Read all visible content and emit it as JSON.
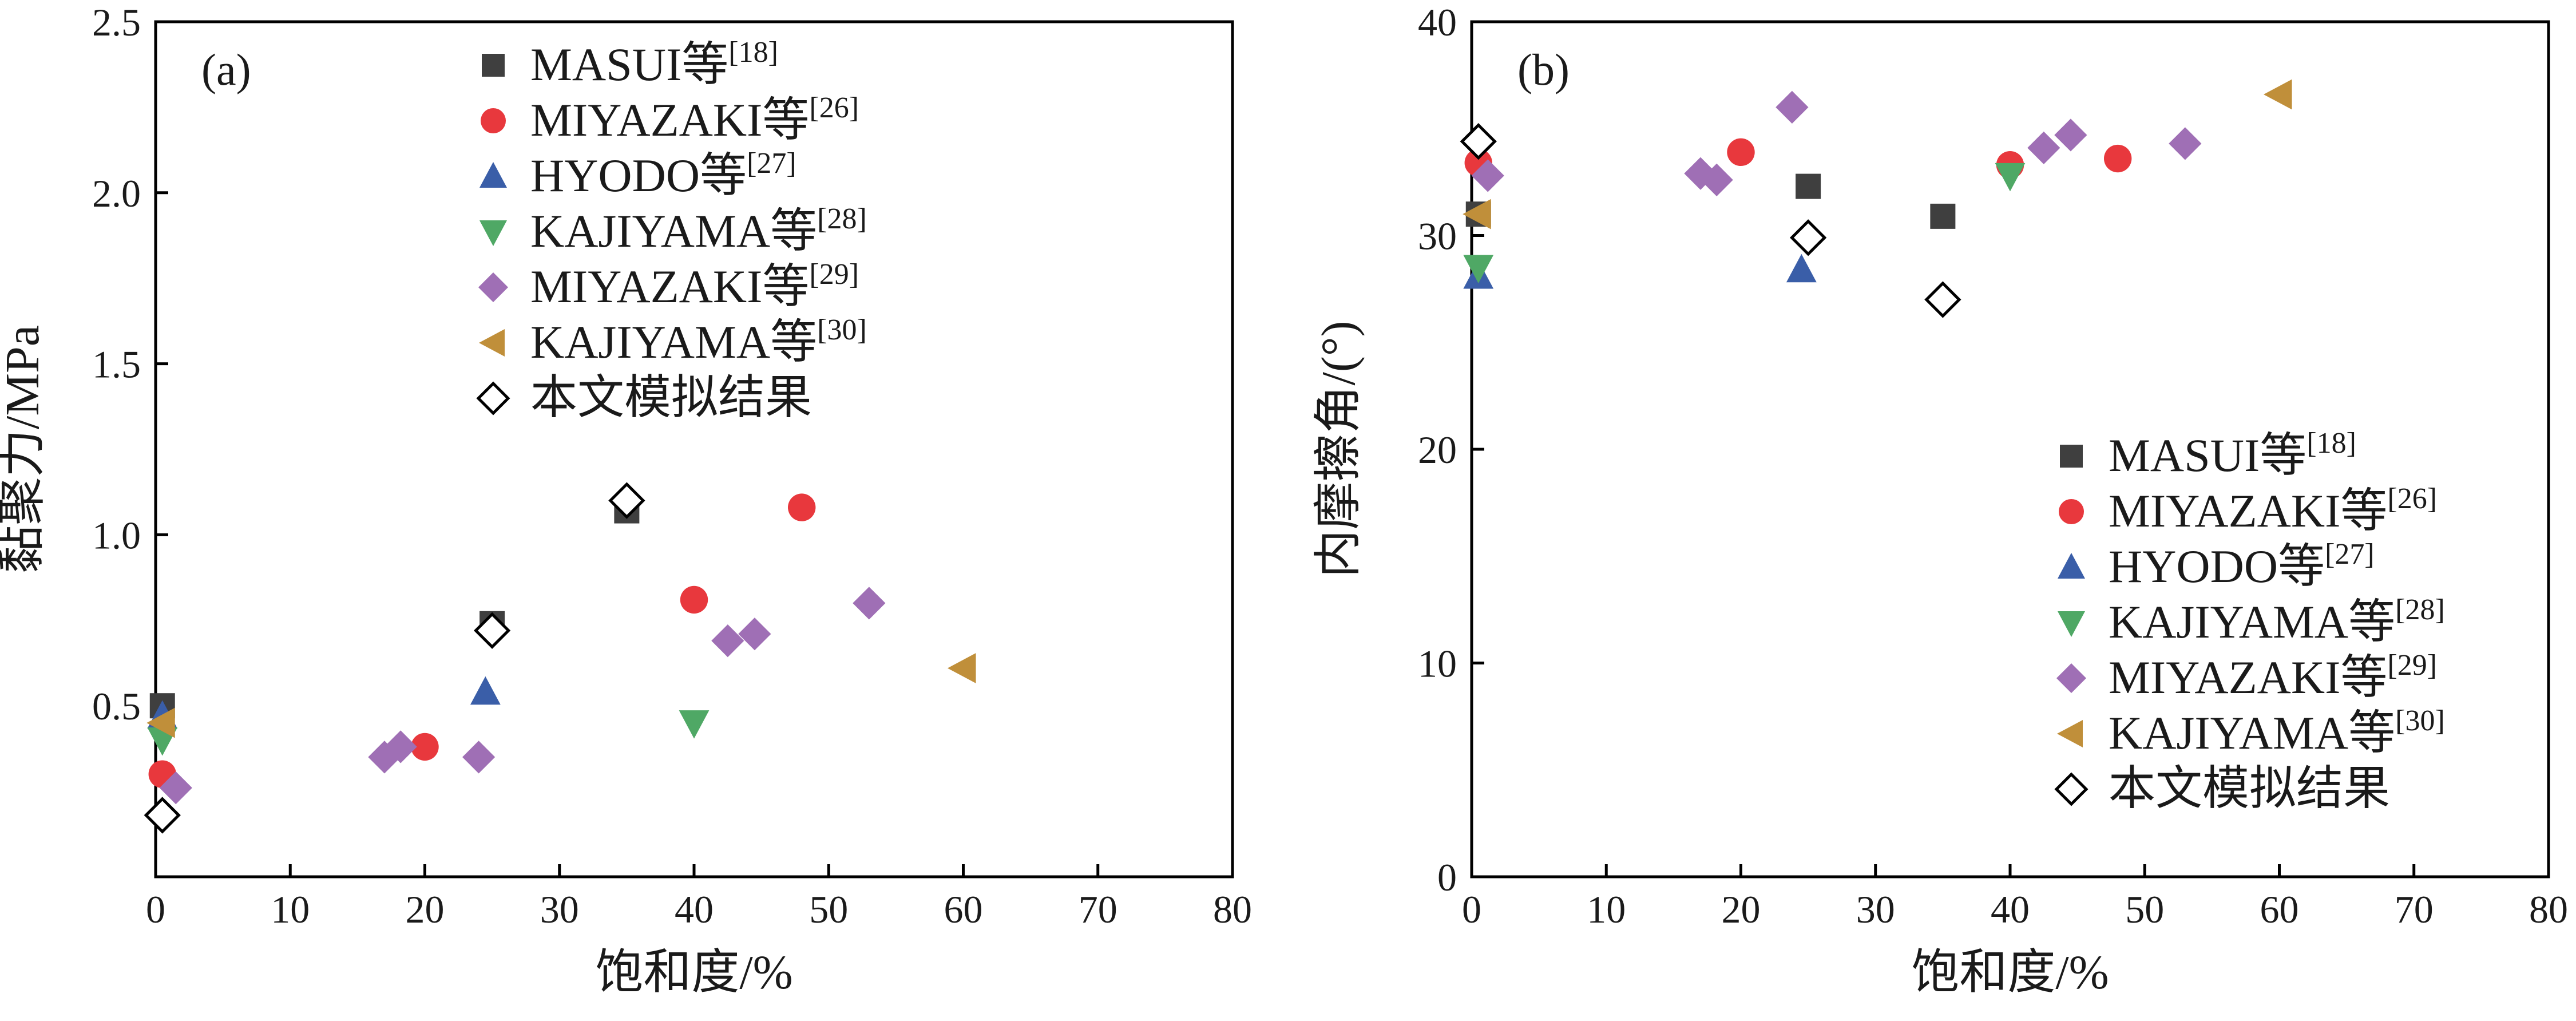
{
  "chart_data": [
    {
      "panel_label": "(a)",
      "type": "scatter",
      "xlabel": "饱和度/%",
      "ylabel": "黏聚力/MPa",
      "xlim": [
        0,
        80
      ],
      "ylim": [
        0,
        2.5
      ],
      "xticks": [
        0,
        10,
        20,
        30,
        40,
        50,
        60,
        70,
        80
      ],
      "yticks": [
        0,
        0.5,
        1.0,
        1.5,
        2.0,
        2.5
      ],
      "xtick_labels": [
        "0",
        "10",
        "20",
        "30",
        "40",
        "50",
        "60",
        "70",
        "80"
      ],
      "ytick_labels": [
        "",
        "0.5",
        "1.0",
        "1.5",
        "2.0",
        "2.5"
      ],
      "legend_position": "top-center",
      "series": [
        {
          "name": "MASUI等",
          "ref": "[18]",
          "marker": "square",
          "color": "#3f3f3f",
          "points": [
            [
              0.5,
              0.5
            ],
            [
              25,
              0.74
            ],
            [
              35,
              1.07
            ]
          ]
        },
        {
          "name": "MIYAZAKI等",
          "ref": "[26]",
          "marker": "circle",
          "color": "#e8383d",
          "points": [
            [
              0.5,
              0.3
            ],
            [
              20,
              0.38
            ],
            [
              40,
              0.81
            ],
            [
              48,
              1.08
            ]
          ]
        },
        {
          "name": "HYODO等",
          "ref": "[27]",
          "marker": "triangle-up",
          "color": "#3a5ea8",
          "points": [
            [
              0.5,
              0.47
            ],
            [
              24.5,
              0.54
            ]
          ]
        },
        {
          "name": "KAJIYAMA等",
          "ref": "[28]",
          "marker": "triangle-down",
          "color": "#4fa865",
          "points": [
            [
              0.5,
              0.4
            ],
            [
              40,
              0.45
            ]
          ]
        },
        {
          "name": "MIYAZAKI等",
          "ref": "[29]",
          "marker": "diamond",
          "color": "#9f6fb5",
          "points": [
            [
              1.5,
              0.26
            ],
            [
              17,
              0.35
            ],
            [
              18.2,
              0.38
            ],
            [
              24,
              0.35
            ],
            [
              42.5,
              0.69
            ],
            [
              44.5,
              0.71
            ],
            [
              53,
              0.8
            ]
          ]
        },
        {
          "name": "KAJIYAMA等",
          "ref": "[30]",
          "marker": "triangle-left",
          "color": "#c08f3a",
          "points": [
            [
              0.5,
              0.45
            ],
            [
              60,
              0.61
            ]
          ]
        },
        {
          "name": "本文模拟结果",
          "ref": "",
          "marker": "diamond-open",
          "color": "#000000",
          "points": [
            [
              0.5,
              0.18
            ],
            [
              25,
              0.72
            ],
            [
              35,
              1.1
            ]
          ]
        }
      ]
    },
    {
      "panel_label": "(b)",
      "type": "scatter",
      "xlabel": "饱和度/%",
      "ylabel": "内摩擦角/(°)",
      "xlim": [
        0,
        80
      ],
      "ylim": [
        0,
        40
      ],
      "xticks": [
        0,
        10,
        20,
        30,
        40,
        50,
        60,
        70,
        80
      ],
      "yticks": [
        0,
        10,
        20,
        30,
        40
      ],
      "xtick_labels": [
        "0",
        "10",
        "20",
        "30",
        "40",
        "50",
        "60",
        "70",
        "80"
      ],
      "ytick_labels": [
        "0",
        "10",
        "20",
        "30",
        "40"
      ],
      "legend_position": "bottom-right",
      "series": [
        {
          "name": "MASUI等",
          "ref": "[18]",
          "marker": "square",
          "color": "#3f3f3f",
          "points": [
            [
              0.5,
              31
            ],
            [
              25,
              32.3
            ],
            [
              35,
              30.9
            ]
          ]
        },
        {
          "name": "MIYAZAKI等",
          "ref": "[26]",
          "marker": "circle",
          "color": "#e8383d",
          "points": [
            [
              0.5,
              33.4
            ],
            [
              20,
              33.9
            ],
            [
              40,
              33.3
            ],
            [
              48,
              33.6
            ]
          ]
        },
        {
          "name": "HYODO等",
          "ref": "[27]",
          "marker": "triangle-up",
          "color": "#3a5ea8",
          "points": [
            [
              0.5,
              28.1
            ],
            [
              24.5,
              28.4
            ]
          ]
        },
        {
          "name": "KAJIYAMA等",
          "ref": "[28]",
          "marker": "triangle-down",
          "color": "#4fa865",
          "points": [
            [
              0.5,
              28.5
            ],
            [
              40,
              32.8
            ]
          ]
        },
        {
          "name": "MIYAZAKI等",
          "ref": "[29]",
          "marker": "diamond",
          "color": "#9f6fb5",
          "points": [
            [
              1.2,
              32.8
            ],
            [
              17,
              32.9
            ],
            [
              18.2,
              32.6
            ],
            [
              23.8,
              36
            ],
            [
              42.5,
              34.1
            ],
            [
              44.5,
              34.7
            ],
            [
              53,
              34.3
            ]
          ]
        },
        {
          "name": "KAJIYAMA等",
          "ref": "[30]",
          "marker": "triangle-left",
          "color": "#c08f3a",
          "points": [
            [
              0.5,
              31
            ],
            [
              60,
              36.6
            ]
          ]
        },
        {
          "name": "本文模拟结果",
          "ref": "",
          "marker": "diamond-open",
          "color": "#000000",
          "points": [
            [
              0.5,
              34.4
            ],
            [
              25,
              29.9
            ],
            [
              35,
              27
            ]
          ]
        }
      ]
    }
  ]
}
